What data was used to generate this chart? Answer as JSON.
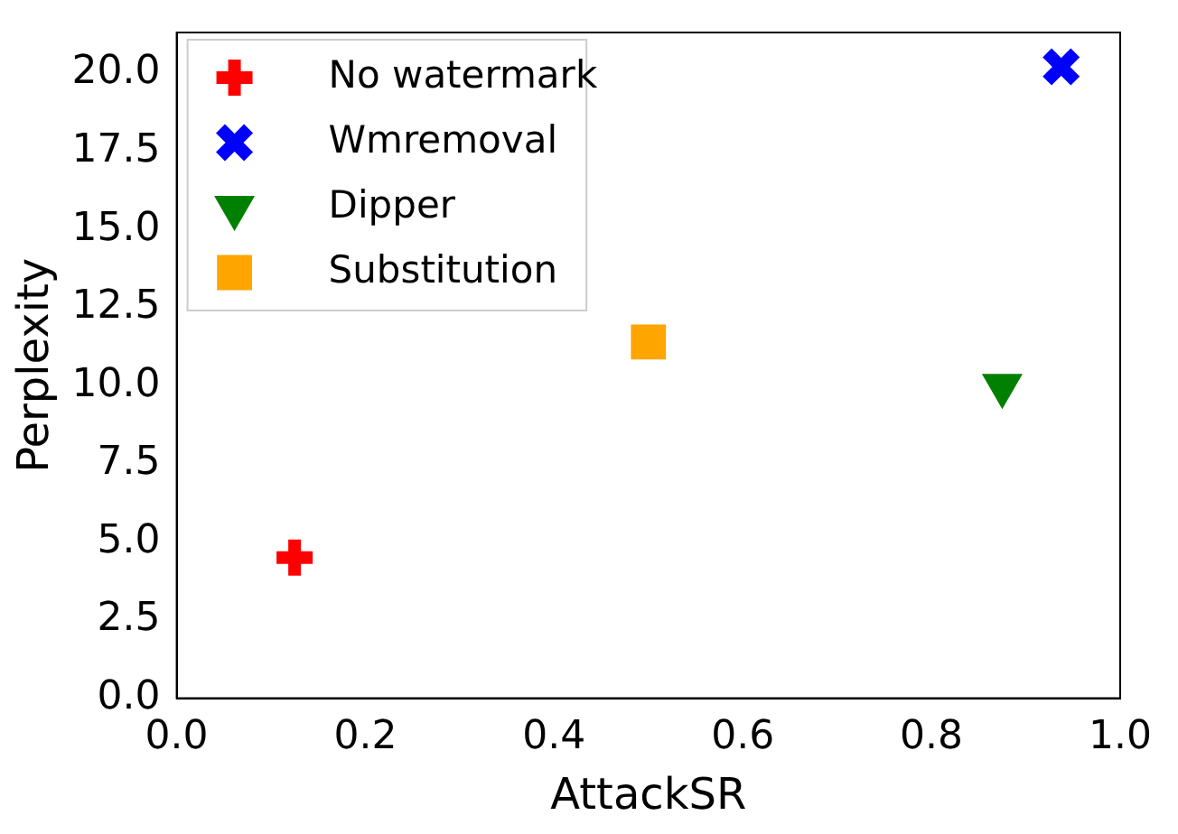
{
  "chart_data": {
    "type": "scatter",
    "xlabel": "AttackSR",
    "ylabel": "Perplexity",
    "xlim": [
      0,
      1
    ],
    "ylim": [
      0,
      21.3
    ],
    "xticks": [
      {
        "value": 0,
        "label": "0.0"
      },
      0.2,
      0.4,
      0.6,
      0.8,
      {
        "value": 1,
        "label": "1.0"
      }
    ],
    "yticks": [
      {
        "value": 0,
        "label": "0.0"
      },
      {
        "value": 2.5,
        "label": "2.5"
      },
      {
        "value": 5,
        "label": "5.0"
      },
      {
        "value": 7.5,
        "label": "7.5"
      },
      {
        "value": 10,
        "label": "10.0"
      },
      {
        "value": 12.5,
        "label": "12.5"
      },
      {
        "value": 15,
        "label": "15.0"
      },
      {
        "value": 17.5,
        "label": "17.5"
      },
      {
        "value": 20,
        "label": "20.0"
      }
    ],
    "legend": "top left",
    "grid": false,
    "series": [
      {
        "name": "No watermark",
        "color": "#ff0000",
        "marker": "cross",
        "x": [
          0.125
        ],
        "values": [
          4.5
        ]
      },
      {
        "name": "Wmremoval",
        "color": "#0000ff",
        "marker": "x",
        "x": [
          0.9375
        ],
        "values": [
          20.2
        ]
      },
      {
        "name": "Dipper",
        "color": "#008000",
        "marker": "triangle",
        "x": [
          0.875
        ],
        "values": [
          10.0
        ]
      },
      {
        "name": "Substitution",
        "color": "#ffa500",
        "marker": "square",
        "x": [
          0.5
        ],
        "values": [
          11.4
        ]
      }
    ]
  }
}
